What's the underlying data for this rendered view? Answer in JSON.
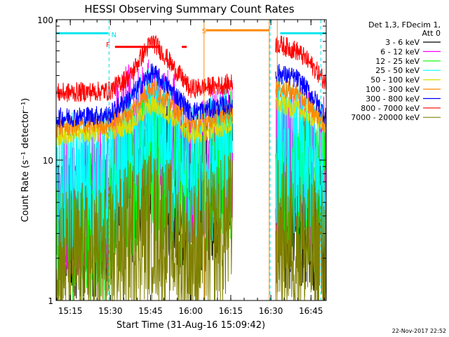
{
  "chart_data": {
    "type": "line",
    "title": "HESSI Observing Summary Count Rates",
    "xlabel": "Start Time (31-Aug-16 15:09:42)",
    "ylabel": "Count Rate (s⁻¹ detector⁻¹)",
    "ylog": true,
    "ylim": [
      1,
      100
    ],
    "xlim_minutes": [
      0,
      101
    ],
    "x_ticks": [
      "15:15",
      "15:30",
      "15:45",
      "16:00",
      "16:15",
      "16:30",
      "16:45"
    ],
    "x_tick_minutes": [
      5.3,
      20.3,
      35.3,
      50.3,
      65.3,
      80.3,
      95.3
    ],
    "y_ticks": [
      1,
      10,
      100
    ],
    "y_tick_labels": [
      "1",
      "10",
      "100"
    ],
    "legend_header": [
      "Det 1,3, FDecim 1,",
      "Att 0"
    ],
    "legend_position": "right",
    "footer_date": "22-Nov-2017 22:52",
    "annotations": [
      {
        "label": "N",
        "color": "#00e5ee",
        "x_minutes": 21.6,
        "y": 75
      },
      {
        "label": "F",
        "color": "#ff0000",
        "x_minutes": 19.4,
        "y": 64
      },
      {
        "label": "S",
        "color": "#ff8800",
        "x_minutes": 55.3,
        "y": 80
      }
    ],
    "flag_bars": [
      {
        "name": "night",
        "color": "#00e5ee",
        "segments": [
          [
            0,
            19.5
          ],
          [
            83.8,
            101
          ]
        ],
        "y": 80
      },
      {
        "name": "flare",
        "color": "#ff0000",
        "segments": [
          [
            22,
            38.6
          ],
          [
            47,
            48.8
          ]
        ],
        "y": 64
      },
      {
        "name": "saa",
        "color": "#ff8800",
        "segments": [
          [
            56,
            79.7
          ]
        ],
        "y": 84
      }
    ],
    "vlines": [
      {
        "color": "#00e5ee",
        "x_minutes": 19.8,
        "style": "dashed"
      },
      {
        "color": "#00e5ee",
        "x_minutes": 80.0,
        "style": "dashed"
      },
      {
        "color": "#00e5ee",
        "x_minutes": 99.0,
        "style": "dashed"
      },
      {
        "color": "#ff8800",
        "x_minutes": 55.3,
        "style": "solid"
      },
      {
        "color": "#ff8800",
        "x_minutes": 79.7,
        "style": "solid"
      },
      {
        "color": "#ff8800",
        "x_minutes": 82.7,
        "style": "solid"
      }
    ],
    "data_gap_minutes": [
      66,
      82
    ],
    "series": [
      {
        "name": "3 - 6 keV",
        "color": "#000000",
        "key_minutes": [
          0,
          20,
          28,
          35,
          42,
          50,
          56,
          66,
          82,
          90,
          101
        ],
        "key_values": [
          3.5,
          3.8,
          6,
          9,
          7,
          5,
          6,
          9,
          4.5,
          4,
          3
        ]
      },
      {
        "name": "6 - 12 keV",
        "color": "#ff00ff",
        "key_minutes": [
          0,
          20,
          25,
          35,
          45,
          50,
          56,
          66,
          82,
          90,
          101
        ],
        "key_values": [
          5,
          5.5,
          14,
          17,
          12,
          7,
          9,
          12,
          10,
          9,
          8
        ]
      },
      {
        "name": "12 - 25 keV",
        "color": "#00ff00",
        "key_minutes": [
          0,
          20,
          28,
          35,
          42,
          50,
          56,
          66,
          82,
          90,
          101
        ],
        "key_values": [
          3,
          3.5,
          7,
          10,
          7,
          5,
          6,
          10,
          7,
          6.5,
          5
        ]
      },
      {
        "name": "25 - 50 keV",
        "color": "#00ffff",
        "key_minutes": [
          0,
          20,
          28,
          35,
          42,
          50,
          56,
          66,
          82,
          90,
          101
        ],
        "key_values": [
          6,
          6.5,
          9,
          14,
          10,
          7,
          8,
          12,
          12,
          10,
          7
        ]
      },
      {
        "name": "50 - 100 keV",
        "color": "#dddd00",
        "key_minutes": [
          0,
          20,
          28,
          36,
          44,
          50,
          56,
          66,
          82,
          90,
          101
        ],
        "key_values": [
          15,
          16,
          18,
          25,
          20,
          15,
          16,
          18,
          25,
          23,
          18
        ]
      },
      {
        "name": "100 - 300 keV",
        "color": "#ff8800",
        "key_minutes": [
          0,
          20,
          28,
          36,
          44,
          50,
          56,
          66,
          82,
          90,
          101
        ],
        "key_values": [
          17,
          18,
          22,
          33,
          24,
          18,
          19,
          22,
          33,
          30,
          17
        ]
      },
      {
        "name": "300 - 800 keV",
        "color": "#0000ff",
        "key_minutes": [
          0,
          20,
          28,
          36,
          44,
          50,
          56,
          66,
          82,
          90,
          101
        ],
        "key_values": [
          20,
          21,
          28,
          42,
          30,
          22,
          23,
          25,
          42,
          38,
          20
        ]
      },
      {
        "name": "800 - 7000 keV",
        "color": "#ff0000",
        "key_minutes": [
          0,
          20,
          28,
          36,
          44,
          50,
          56,
          66,
          82,
          90,
          101
        ],
        "key_values": [
          30,
          31,
          40,
          70,
          45,
          32,
          33,
          35,
          68,
          60,
          35
        ]
      },
      {
        "name": "7000 - 20000 keV",
        "color": "#808000",
        "key_minutes": [
          0,
          20,
          28,
          35,
          42,
          50,
          56,
          66,
          82,
          90,
          101
        ],
        "key_values": [
          2,
          2,
          3,
          3.5,
          3,
          2,
          2.5,
          3.5,
          3,
          2.5,
          2
        ]
      }
    ]
  }
}
